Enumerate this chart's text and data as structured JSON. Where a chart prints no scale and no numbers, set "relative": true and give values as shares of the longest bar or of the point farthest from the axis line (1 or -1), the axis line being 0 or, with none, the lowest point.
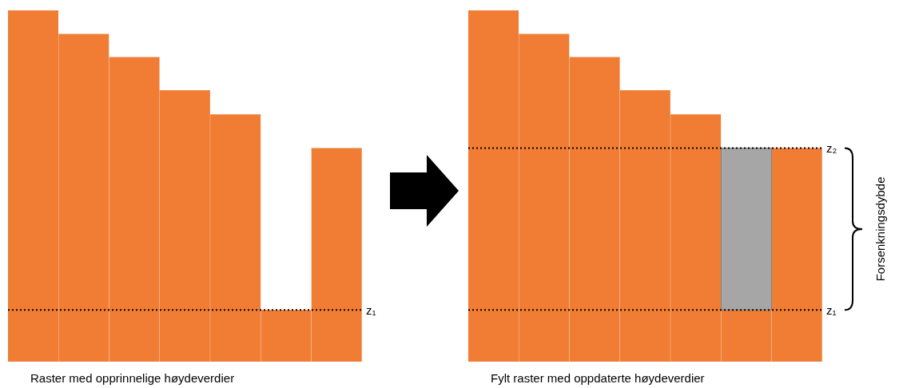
{
  "chart_data": [
    {
      "type": "bar",
      "relative": true,
      "categories": [
        null,
        null,
        null,
        null,
        null,
        null,
        null
      ],
      "xlabel": "Raster med opprinnelige høydeverdier",
      "series": [
        {
          "color": "#f07d33",
          "values": [
            1,
            0.933,
            0.867,
            0.773,
            0.704,
            0.147,
            0.608
          ]
        }
      ],
      "ref_lines": [
        {
          "axis": "y",
          "value": 0.147,
          "label": "z₁",
          "line_style": "dotted",
          "color": "#000000"
        }
      ]
    },
    {
      "type": "bar",
      "relative": true,
      "stacked": true,
      "categories": [
        null,
        null,
        null,
        null,
        null,
        null,
        null
      ],
      "xlabel": "Fylt raster med oppdaterte høydeverdier",
      "series": [
        {
          "color": "#f07d33",
          "values": [
            1,
            0.933,
            0.867,
            0.773,
            0.704,
            0.147,
            0.608
          ]
        },
        {
          "color": "#a6a6a6",
          "values": [
            null,
            null,
            null,
            null,
            null,
            0.461,
            null
          ]
        }
      ],
      "ref_lines": [
        {
          "axis": "y",
          "value": 0.608,
          "label": "z₂",
          "line_style": "dotted",
          "color": "#000000"
        },
        {
          "axis": "y",
          "value": 0.147,
          "label": "z₁",
          "line_style": "dotted",
          "color": "#000000"
        }
      ],
      "annotations": [
        "Forsenkningsdybde"
      ]
    }
  ]
}
